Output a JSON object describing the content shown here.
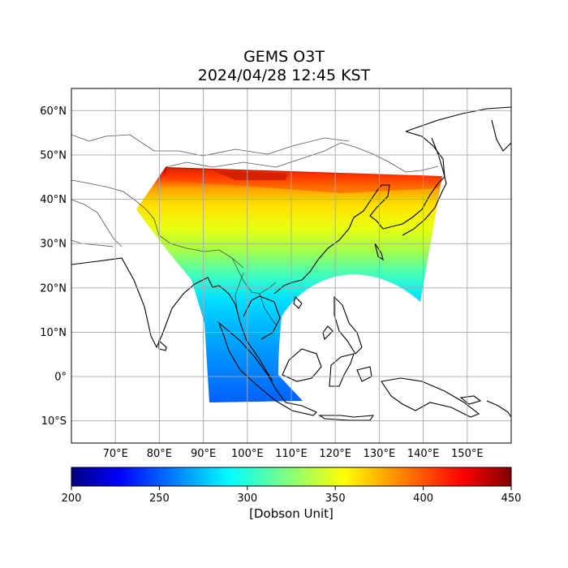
{
  "title": "GEMS O3T",
  "subtitle": "2024/04/28 12:45 KST",
  "map": {
    "lon_range": [
      60,
      160
    ],
    "lat_range": [
      -15,
      65
    ],
    "lon_ticks": [
      {
        "v": 70,
        "label": "70°E"
      },
      {
        "v": 80,
        "label": "80°E"
      },
      {
        "v": 90,
        "label": "90°E"
      },
      {
        "v": 100,
        "label": "100°E"
      },
      {
        "v": 110,
        "label": "110°E"
      },
      {
        "v": 120,
        "label": "120°E"
      },
      {
        "v": 130,
        "label": "130°E"
      },
      {
        "v": 140,
        "label": "140°E"
      },
      {
        "v": 150,
        "label": "150°E"
      }
    ],
    "lat_ticks": [
      {
        "v": 60,
        "label": "60°N"
      },
      {
        "v": 50,
        "label": "50°N"
      },
      {
        "v": 40,
        "label": "40°N"
      },
      {
        "v": 30,
        "label": "30°N"
      },
      {
        "v": 20,
        "label": "20°N"
      },
      {
        "v": 10,
        "label": "10°N"
      },
      {
        "v": 0,
        "label": "0°"
      },
      {
        "v": -10,
        "label": "10°S"
      }
    ],
    "grid": true
  },
  "colorbar": {
    "min": 200,
    "max": 450,
    "ticks": [
      200,
      250,
      300,
      350,
      400,
      450
    ],
    "label": "[Dobson Unit]",
    "colormap": "jet"
  }
}
